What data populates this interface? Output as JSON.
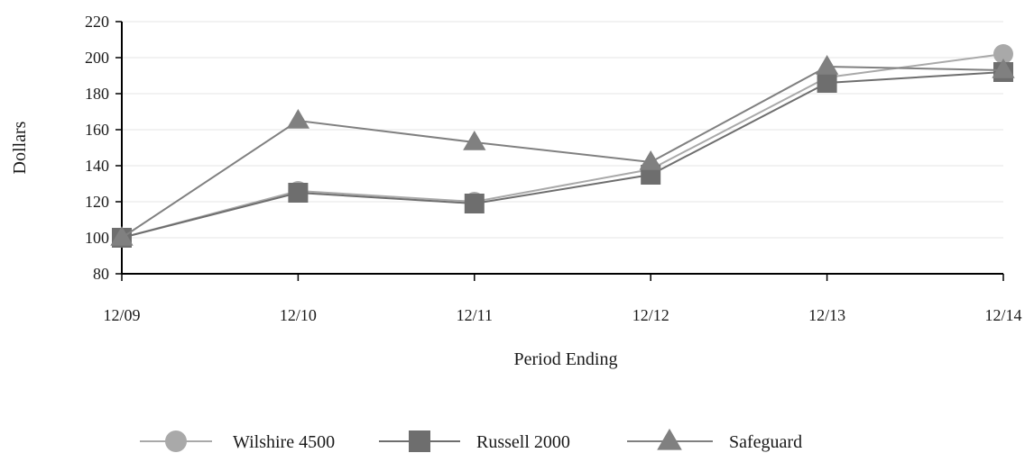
{
  "chart_data": {
    "type": "line",
    "categories": [
      "12/09",
      "12/10",
      "12/11",
      "12/12",
      "12/13",
      "12/14"
    ],
    "series": [
      {
        "name": "Wilshire 4500",
        "marker": "circle",
        "color": "#a9a9a9",
        "values": [
          100,
          126,
          120,
          138,
          189,
          202
        ]
      },
      {
        "name": "Russell 2000",
        "marker": "square",
        "color": "#6e6e6e",
        "values": [
          100,
          125,
          119,
          135,
          186,
          192
        ]
      },
      {
        "name": "Safeguard",
        "marker": "triangle",
        "color": "#808080",
        "values": [
          100,
          165,
          153,
          142,
          195,
          193
        ]
      }
    ],
    "title": "",
    "xlabel": "Period Ending",
    "ylabel": "Dollars",
    "ylim": [
      80,
      220
    ],
    "yticks": [
      "80",
      "100",
      "120",
      "140",
      "160",
      "180",
      "200",
      "220"
    ],
    "grid": true,
    "legend_position": "bottom"
  }
}
